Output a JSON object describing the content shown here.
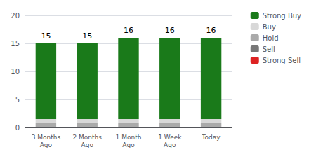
{
  "chart_data": {
    "type": "bar",
    "stacked": true,
    "categories": [
      "3 Months\nAgo",
      "2 Months\nAgo",
      "1 Month\nAgo",
      "1 Week\nAgo",
      "Today"
    ],
    "series": [
      {
        "name": "Strong Buy",
        "color": "#1a7a1a",
        "values": [
          13.5,
          13.5,
          14.5,
          14.5,
          14.5
        ]
      },
      {
        "name": "Buy",
        "color": "#d8d8d8",
        "values": [
          0.7,
          0.7,
          0.7,
          0.7,
          0.7
        ]
      },
      {
        "name": "Hold",
        "color": "#aaaaaa",
        "values": [
          0.8,
          0.8,
          0.8,
          0.8,
          0.8
        ]
      },
      {
        "name": "Sell",
        "color": "#777777",
        "values": [
          0,
          0,
          0,
          0,
          0
        ]
      },
      {
        "name": "Strong Sell",
        "color": "#dd2222",
        "values": [
          0,
          0,
          0,
          0,
          0
        ]
      }
    ],
    "totals": [
      15,
      15,
      16,
      16,
      16
    ],
    "ylim": [
      0,
      20
    ],
    "yticks": [
      0,
      5,
      10,
      15,
      20
    ],
    "grid": true,
    "legend": "right"
  }
}
